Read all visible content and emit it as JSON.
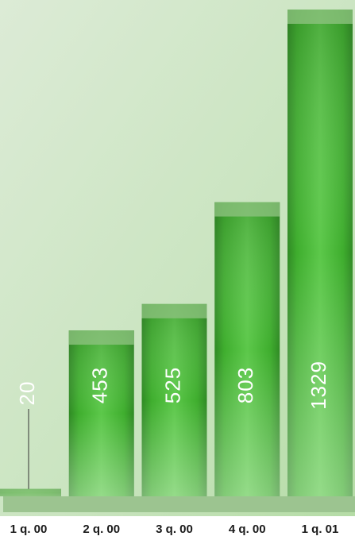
{
  "chart_data": {
    "type": "bar",
    "categories": [
      "1 q. 00",
      "2 q. 00",
      "3 q. 00",
      "4 q. 00",
      "1 q. 01"
    ],
    "values": [
      20,
      453,
      525,
      803,
      1329
    ],
    "color": "#3fae2e"
  }
}
